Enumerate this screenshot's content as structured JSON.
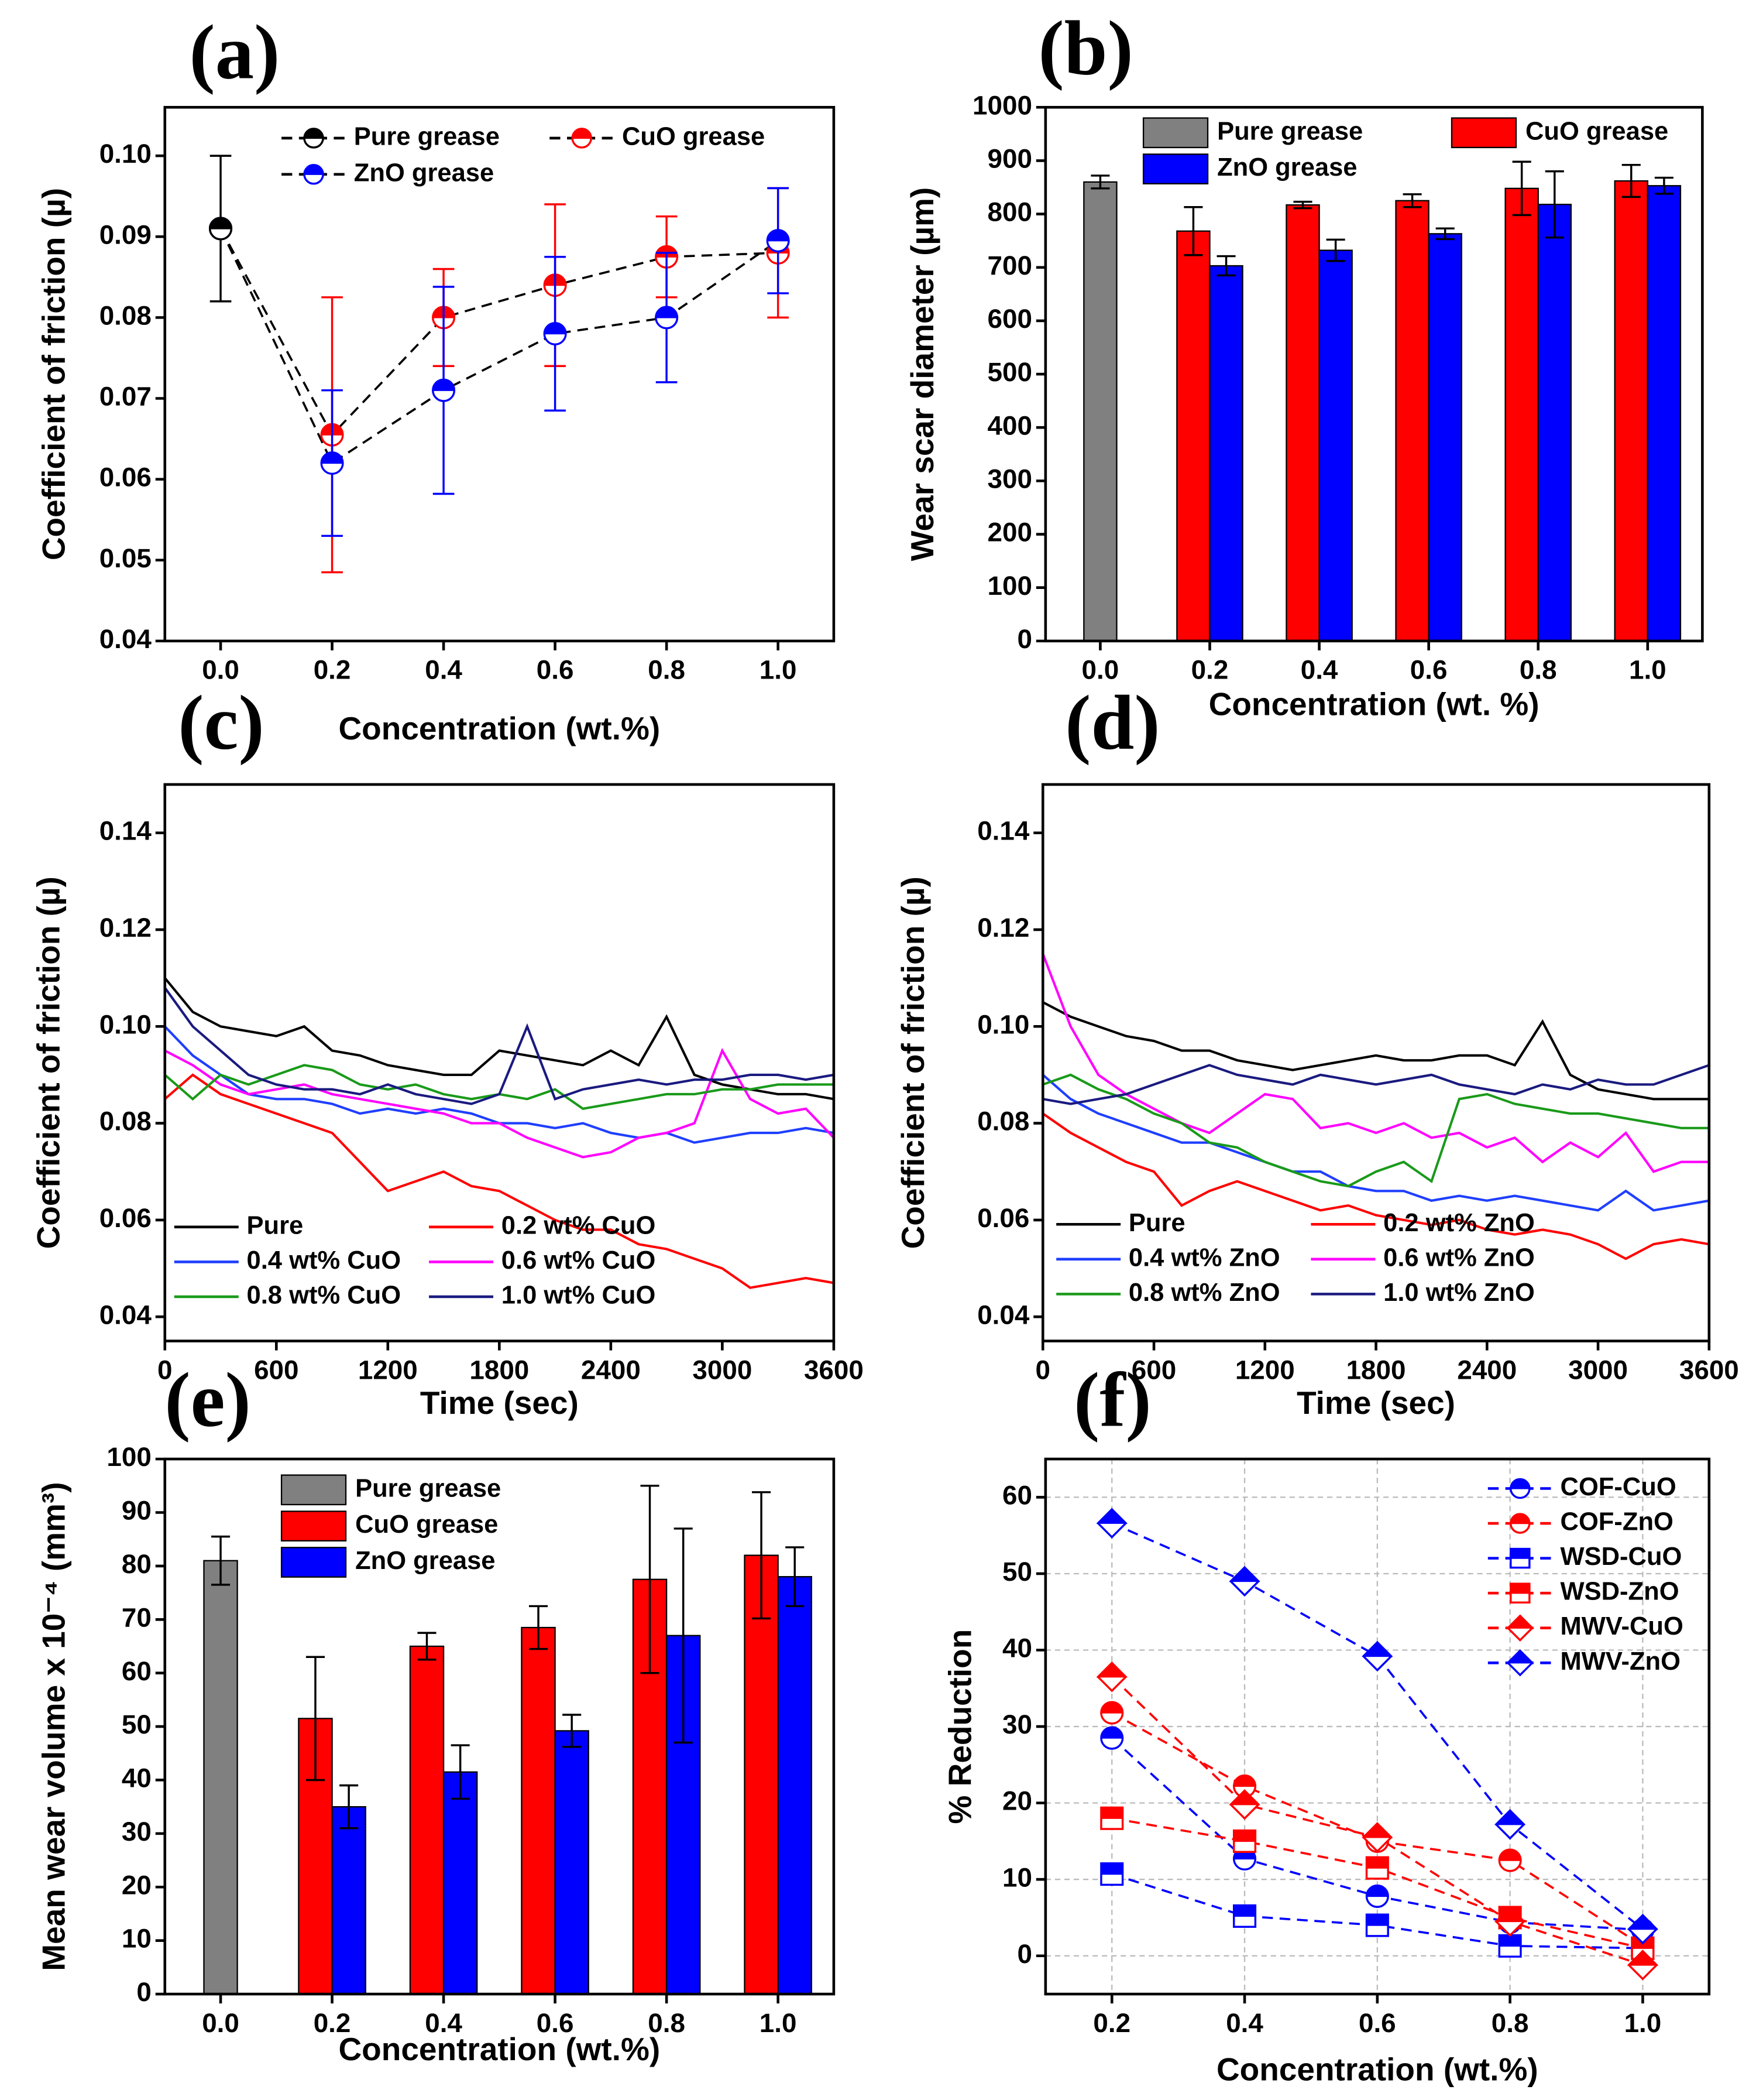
{
  "chart_data": [
    {
      "type": "line",
      "label": "(a)",
      "xlabel": "Concentration (wt.%)",
      "ylabel": "Coefficient of friction (µ)",
      "x": [
        0,
        0.2,
        0.4,
        0.6,
        0.8,
        1.0
      ],
      "xlim": [
        -0.1,
        1.1
      ],
      "xticks": [
        {
          "value": 0,
          "label": "0.0"
        },
        0.2,
        0.4,
        0.6,
        0.8,
        {
          "value": 1,
          "label": "1.0"
        }
      ],
      "ylim": [
        0.04,
        0.106
      ],
      "yticks": [
        0.04,
        0.05,
        0.06,
        0.07,
        0.08,
        0.09,
        {
          "value": 0.1,
          "label": "0.10"
        }
      ],
      "line_style": "dashed",
      "line_color": "#000000",
      "series": [
        {
          "name": "CuO grease",
          "color": "#ff0000",
          "marker": "circle",
          "values": [
            0.091,
            0.0655,
            0.08,
            0.084,
            0.0875,
            0.088
          ],
          "errors": [
            null,
            0.017,
            0.006,
            0.01,
            0.005,
            0.008
          ]
        },
        {
          "name": "ZnO grease",
          "color": "#0000ff",
          "marker": "circle",
          "values": [
            0.091,
            0.062,
            0.071,
            0.078,
            0.08,
            0.0895
          ],
          "errors": [
            null,
            0.009,
            0.0128,
            0.0095,
            0.008,
            0.0065
          ]
        },
        {
          "name": "Pure grease",
          "color": "#000000",
          "marker": "circle",
          "values": [
            0.091,
            null,
            null,
            null,
            null,
            null
          ],
          "errors": [
            0.009,
            null,
            null,
            null,
            null,
            null
          ]
        }
      ]
    },
    {
      "type": "bar",
      "label": "(b)",
      "xlabel": "Concentration (wt. %)",
      "ylabel": "Wear scar diameter (µm)",
      "categories": [
        "0.0",
        "0.2",
        "0.4",
        "0.6",
        "0.8",
        "1.0"
      ],
      "ylim": [
        0,
        1000
      ],
      "yticks": [
        0,
        100,
        200,
        300,
        400,
        500,
        600,
        700,
        800,
        900,
        1000
      ],
      "series": [
        {
          "name": "Pure grease",
          "color": "#808080",
          "values": [
            860,
            null,
            null,
            null,
            null,
            null
          ],
          "errors": [
            12,
            null,
            null,
            null,
            null,
            null
          ]
        },
        {
          "name": "CuO grease",
          "color": "#ff0000",
          "values": [
            null,
            768,
            817,
            825,
            848,
            862
          ],
          "errors": [
            null,
            45,
            6,
            12,
            50,
            30
          ]
        },
        {
          "name": "ZnO grease",
          "color": "#0000ff",
          "values": [
            null,
            703,
            732,
            763,
            818,
            853
          ],
          "errors": [
            null,
            18,
            20,
            10,
            62,
            15
          ]
        }
      ]
    },
    {
      "type": "line",
      "label": "(c)",
      "xlabel": "Time (sec)",
      "ylabel": "Coefficient of friction (µ)",
      "x": [
        0,
        150,
        300,
        450,
        600,
        750,
        900,
        1050,
        1200,
        1350,
        1500,
        1650,
        1800,
        1950,
        2100,
        2250,
        2400,
        2550,
        2700,
        2850,
        3000,
        3150,
        3300,
        3450,
        3600
      ],
      "xlim": [
        0,
        3600
      ],
      "xticks": [
        0,
        600,
        1200,
        1800,
        2400,
        3000,
        3600
      ],
      "ylim": [
        0.035,
        0.15
      ],
      "yticks": [
        0.04,
        0.06,
        0.08,
        {
          "value": 0.1,
          "label": "0.10"
        },
        0.12,
        0.14
      ],
      "line_style": "solid",
      "series": [
        {
          "name": "Pure",
          "color": "#000000",
          "values": [
            0.11,
            0.103,
            0.1,
            0.099,
            0.098,
            0.1,
            0.095,
            0.094,
            0.092,
            0.091,
            0.09,
            0.09,
            0.095,
            0.094,
            0.093,
            0.092,
            0.095,
            0.092,
            0.102,
            0.09,
            0.088,
            0.087,
            0.086,
            0.086,
            0.085
          ]
        },
        {
          "name": "0.2 wt% CuO",
          "color": "#ff0000",
          "values": [
            0.085,
            0.09,
            0.086,
            0.084,
            0.082,
            0.08,
            0.078,
            0.072,
            0.066,
            0.068,
            0.07,
            0.067,
            0.066,
            0.063,
            0.06,
            0.058,
            0.058,
            0.055,
            0.054,
            0.052,
            0.05,
            0.046,
            0.047,
            0.048,
            0.047
          ]
        },
        {
          "name": "0.4 wt% CuO",
          "color": "#1f3fff",
          "values": [
            0.1,
            0.094,
            0.09,
            0.086,
            0.085,
            0.085,
            0.084,
            0.082,
            0.083,
            0.082,
            0.083,
            0.082,
            0.08,
            0.08,
            0.079,
            0.08,
            0.078,
            0.077,
            0.078,
            0.076,
            0.077,
            0.078,
            0.078,
            0.079,
            0.078
          ]
        },
        {
          "name": "0.6 wt% CuO",
          "color": "#ff00ff",
          "values": [
            0.095,
            0.092,
            0.088,
            0.086,
            0.087,
            0.088,
            0.086,
            0.085,
            0.084,
            0.083,
            0.082,
            0.08,
            0.08,
            0.077,
            0.075,
            0.073,
            0.074,
            0.077,
            0.078,
            0.08,
            0.095,
            0.085,
            0.082,
            0.083,
            0.077
          ]
        },
        {
          "name": "0.8 wt% CuO",
          "color": "#1a9a1a",
          "values": [
            0.09,
            0.085,
            0.09,
            0.088,
            0.09,
            0.092,
            0.091,
            0.088,
            0.087,
            0.088,
            0.086,
            0.085,
            0.086,
            0.085,
            0.087,
            0.083,
            0.084,
            0.085,
            0.086,
            0.086,
            0.087,
            0.087,
            0.088,
            0.088,
            0.088
          ]
        },
        {
          "name": "1.0 wt% CuO",
          "color": "#1a1a80",
          "values": [
            0.108,
            0.1,
            0.095,
            0.09,
            0.088,
            0.087,
            0.087,
            0.086,
            0.088,
            0.086,
            0.085,
            0.084,
            0.086,
            0.1,
            0.085,
            0.087,
            0.088,
            0.089,
            0.088,
            0.089,
            0.089,
            0.09,
            0.09,
            0.089,
            0.09
          ]
        }
      ]
    },
    {
      "type": "line",
      "label": "(d)",
      "xlabel": "Time (sec)",
      "ylabel": "Coefficient of friction (µ)",
      "x": [
        0,
        150,
        300,
        450,
        600,
        750,
        900,
        1050,
        1200,
        1350,
        1500,
        1650,
        1800,
        1950,
        2100,
        2250,
        2400,
        2550,
        2700,
        2850,
        3000,
        3150,
        3300,
        3450,
        3600
      ],
      "xlim": [
        0,
        3600
      ],
      "xticks": [
        0,
        600,
        1200,
        1800,
        2400,
        3000,
        3600
      ],
      "ylim": [
        0.035,
        0.15
      ],
      "yticks": [
        0.04,
        0.06,
        0.08,
        {
          "value": 0.1,
          "label": "0.10"
        },
        0.12,
        0.14
      ],
      "line_style": "solid",
      "series": [
        {
          "name": "Pure",
          "color": "#000000",
          "values": [
            0.105,
            0.102,
            0.1,
            0.098,
            0.097,
            0.095,
            0.095,
            0.093,
            0.092,
            0.091,
            0.092,
            0.093,
            0.094,
            0.093,
            0.093,
            0.094,
            0.094,
            0.092,
            0.101,
            0.09,
            0.087,
            0.086,
            0.085,
            0.085,
            0.085
          ]
        },
        {
          "name": "0.2 wt% ZnO",
          "color": "#ff0000",
          "values": [
            0.082,
            0.078,
            0.075,
            0.072,
            0.07,
            0.063,
            0.066,
            0.068,
            0.066,
            0.064,
            0.062,
            0.063,
            0.061,
            0.06,
            0.059,
            0.06,
            0.058,
            0.057,
            0.058,
            0.057,
            0.055,
            0.052,
            0.055,
            0.056,
            0.055
          ]
        },
        {
          "name": "0.4 wt% ZnO",
          "color": "#1f3fff",
          "values": [
            0.09,
            0.085,
            0.082,
            0.08,
            0.078,
            0.076,
            0.076,
            0.074,
            0.072,
            0.07,
            0.07,
            0.067,
            0.066,
            0.066,
            0.064,
            0.065,
            0.064,
            0.065,
            0.064,
            0.063,
            0.062,
            0.066,
            0.062,
            0.063,
            0.064
          ]
        },
        {
          "name": "0.6 wt% ZnO",
          "color": "#ff00ff",
          "values": [
            0.115,
            0.1,
            0.09,
            0.086,
            0.083,
            0.08,
            0.078,
            0.082,
            0.086,
            0.085,
            0.079,
            0.08,
            0.078,
            0.08,
            0.077,
            0.078,
            0.075,
            0.077,
            0.072,
            0.076,
            0.073,
            0.078,
            0.07,
            0.072,
            0.072
          ]
        },
        {
          "name": "0.8 wt% ZnO",
          "color": "#1a9a1a",
          "values": [
            0.088,
            0.09,
            0.087,
            0.085,
            0.082,
            0.08,
            0.076,
            0.075,
            0.072,
            0.07,
            0.068,
            0.067,
            0.07,
            0.072,
            0.068,
            0.085,
            0.086,
            0.084,
            0.083,
            0.082,
            0.082,
            0.081,
            0.08,
            0.079,
            0.079
          ]
        },
        {
          "name": "1.0 wt% ZnO",
          "color": "#1a1a80",
          "values": [
            0.085,
            0.084,
            0.085,
            0.086,
            0.088,
            0.09,
            0.092,
            0.09,
            0.089,
            0.088,
            0.09,
            0.089,
            0.088,
            0.089,
            0.09,
            0.088,
            0.087,
            0.086,
            0.088,
            0.087,
            0.089,
            0.088,
            0.088,
            0.09,
            0.092
          ]
        }
      ]
    },
    {
      "type": "bar",
      "label": "(e)",
      "xlabel": "Concentration (wt.%)",
      "ylabel": "Mean wear volume x 10⁻⁴ (mm³)",
      "categories": [
        "0.0",
        "0.2",
        "0.4",
        "0.6",
        "0.8",
        "1.0"
      ],
      "ylim": [
        0,
        100
      ],
      "yticks": [
        0,
        10,
        20,
        30,
        40,
        50,
        60,
        70,
        80,
        90,
        100
      ],
      "series": [
        {
          "name": "Pure grease",
          "color": "#808080",
          "values": [
            81,
            null,
            null,
            null,
            null,
            null
          ],
          "errors": [
            4.5,
            null,
            null,
            null,
            null,
            null
          ]
        },
        {
          "name": "CuO grease",
          "color": "#ff0000",
          "values": [
            null,
            51.5,
            65,
            68.5,
            77.5,
            82
          ],
          "errors": [
            null,
            11.5,
            2.5,
            4,
            17.5,
            11.8
          ]
        },
        {
          "name": "ZnO grease",
          "color": "#0000ff",
          "values": [
            null,
            35,
            41.5,
            49.2,
            67,
            78
          ],
          "errors": [
            null,
            4,
            5,
            3,
            20,
            5.5
          ]
        }
      ]
    },
    {
      "type": "line",
      "label": "(f)",
      "xlabel": "Concentration (wt.%)",
      "ylabel": "% Reduction",
      "x": [
        0.2,
        0.4,
        0.6,
        0.8,
        1.0
      ],
      "xlim": [
        0.1,
        1.1
      ],
      "xticks": [
        0.2,
        0.4,
        0.6,
        0.8,
        {
          "value": 1,
          "label": "1.0"
        }
      ],
      "ylim": [
        -5,
        65
      ],
      "yticks": [
        0,
        10,
        20,
        30,
        40,
        50,
        60
      ],
      "grid": true,
      "line_style": "dashed",
      "series": [
        {
          "name": "COF-CuO",
          "color": "#0000ff",
          "marker": "circle",
          "values": [
            28.5,
            12.7,
            7.8,
            4.4,
            3.4
          ]
        },
        {
          "name": "COF-ZnO",
          "color": "#ff0000",
          "marker": "circle",
          "values": [
            31.8,
            22.2,
            15,
            12.5,
            1.3
          ]
        },
        {
          "name": "WSD-CuO",
          "color": "#0000ff",
          "marker": "square",
          "values": [
            10.7,
            5.2,
            4,
            1.3,
            1
          ]
        },
        {
          "name": "WSD-ZnO",
          "color": "#ff0000",
          "marker": "square",
          "values": [
            18,
            15,
            11.5,
            5,
            1
          ]
        },
        {
          "name": "MWV-CuO",
          "color": "#ff0000",
          "marker": "diamond",
          "values": [
            36.5,
            19.8,
            15.5,
            4.5,
            -1.2
          ]
        },
        {
          "name": "MWV-ZnO",
          "color": "#0000ff",
          "marker": "diamond",
          "values": [
            56.6,
            49,
            39.2,
            17.2,
            3.5
          ]
        }
      ]
    }
  ]
}
